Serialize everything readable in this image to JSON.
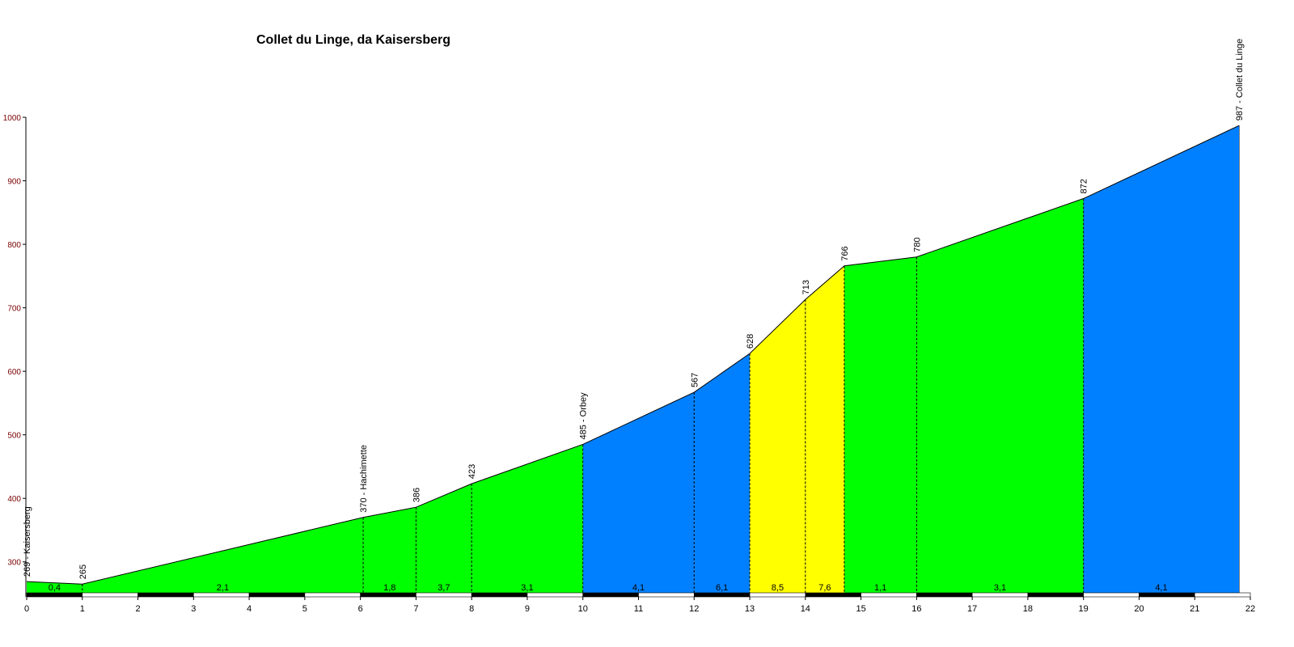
{
  "chart_data": {
    "type": "area",
    "title": "Collet du Linge, da Kaisersberg",
    "xlabel": "",
    "ylabel": "",
    "xlim": [
      0,
      22
    ],
    "ylim": [
      250,
      1000
    ],
    "x_ticks": [
      "0",
      "1",
      "2",
      "3",
      "4",
      "5",
      "6",
      "7",
      "8",
      "9",
      "10",
      "11",
      "12",
      "13",
      "14",
      "15",
      "16",
      "17",
      "18",
      "19",
      "20",
      "21",
      "22"
    ],
    "y_ticks": [
      "300",
      "400",
      "500",
      "600",
      "700",
      "800",
      "900",
      "1000"
    ],
    "grid": false,
    "points": [
      {
        "x": 0,
        "y": 269,
        "label": "269 - Kaisersberg"
      },
      {
        "x": 1,
        "y": 265,
        "label": "265"
      },
      {
        "x": 6.05,
        "y": 370,
        "label": "370 - Hachimette"
      },
      {
        "x": 7,
        "y": 386,
        "label": "386"
      },
      {
        "x": 8,
        "y": 423,
        "label": "423"
      },
      {
        "x": 10,
        "y": 485,
        "label": "485 - Orbey"
      },
      {
        "x": 12,
        "y": 567,
        "label": "567"
      },
      {
        "x": 13,
        "y": 628,
        "label": "628"
      },
      {
        "x": 14,
        "y": 713,
        "label": "713"
      },
      {
        "x": 14.7,
        "y": 766,
        "label": "766"
      },
      {
        "x": 16,
        "y": 780,
        "label": "780"
      },
      {
        "x": 19,
        "y": 872,
        "label": "872"
      },
      {
        "x": 21.8,
        "y": 987,
        "label": "987 - Collet du Linge"
      }
    ],
    "segments": [
      {
        "grade": "0,4",
        "color": "#00ff00"
      },
      {
        "grade": "2,1",
        "color": "#00ff00"
      },
      {
        "grade": "1,8",
        "color": "#00ff00"
      },
      {
        "grade": "3,7",
        "color": "#00ff00"
      },
      {
        "grade": "3,1",
        "color": "#00ff00"
      },
      {
        "grade": "4,1",
        "color": "#0080ff"
      },
      {
        "grade": "6,1",
        "color": "#0080ff"
      },
      {
        "grade": "8,5",
        "color": "#ffff00"
      },
      {
        "grade": "7,6",
        "color": "#ffff00"
      },
      {
        "grade": "1,1",
        "color": "#00ff00"
      },
      {
        "grade": "3,1",
        "color": "#00ff00"
      },
      {
        "grade": "4,1",
        "color": "#0080ff"
      }
    ],
    "colors": {
      "low": "#00ff00",
      "mid": "#0080ff",
      "steep": "#ffff00",
      "y_tick_text": "#7a0000"
    }
  }
}
